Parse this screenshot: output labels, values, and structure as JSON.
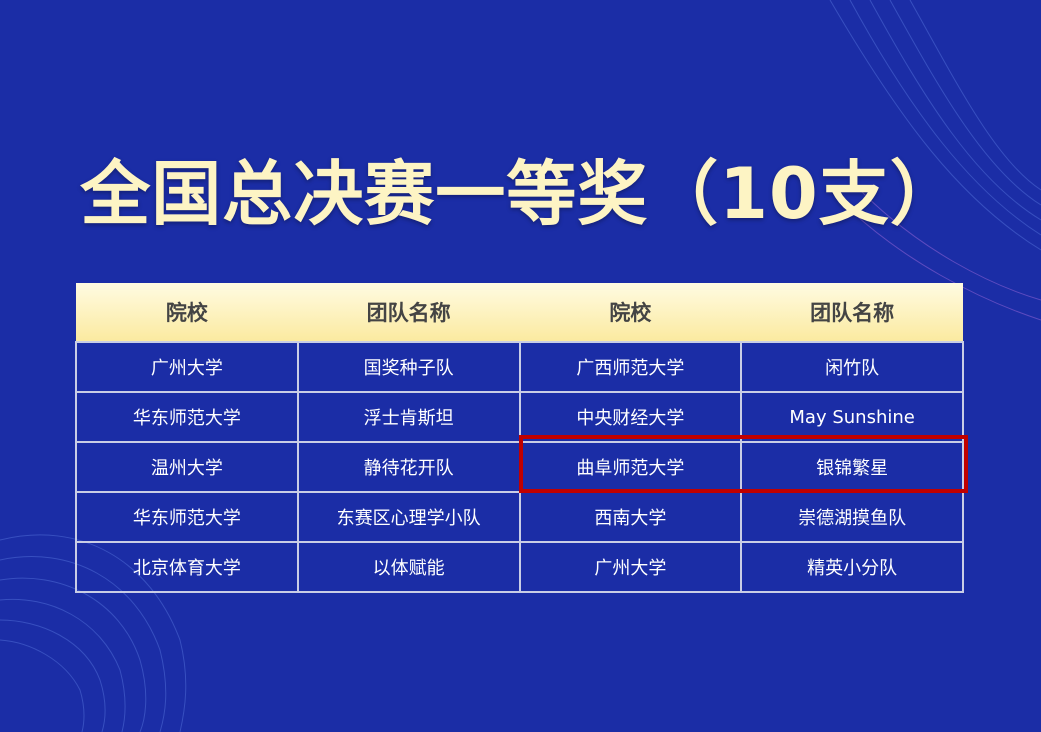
{
  "title": "全国总决赛一等奖（10支）",
  "colors": {
    "background": "#1b2da6",
    "title": "#fdf4c4",
    "highlight": "#c00000"
  },
  "table": {
    "headers": [
      "院校",
      "团队名称",
      "院校",
      "团队名称"
    ],
    "rows": [
      [
        "广州大学",
        "国奖种子队",
        "广西师范大学",
        "闲竹队"
      ],
      [
        "华东师范大学",
        "浮士肯斯坦",
        "中央财经大学",
        "May Sunshine"
      ],
      [
        "温州大学",
        "静待花开队",
        "曲阜师范大学",
        "银锦繁星"
      ],
      [
        "华东师范大学",
        "东赛区心理学小队",
        "西南大学",
        "崇德湖摸鱼队"
      ],
      [
        "北京体育大学",
        "以体赋能",
        "广州大学",
        "精英小分队"
      ]
    ],
    "highlighted_row": 2,
    "highlighted_columns": [
      2,
      3
    ]
  }
}
